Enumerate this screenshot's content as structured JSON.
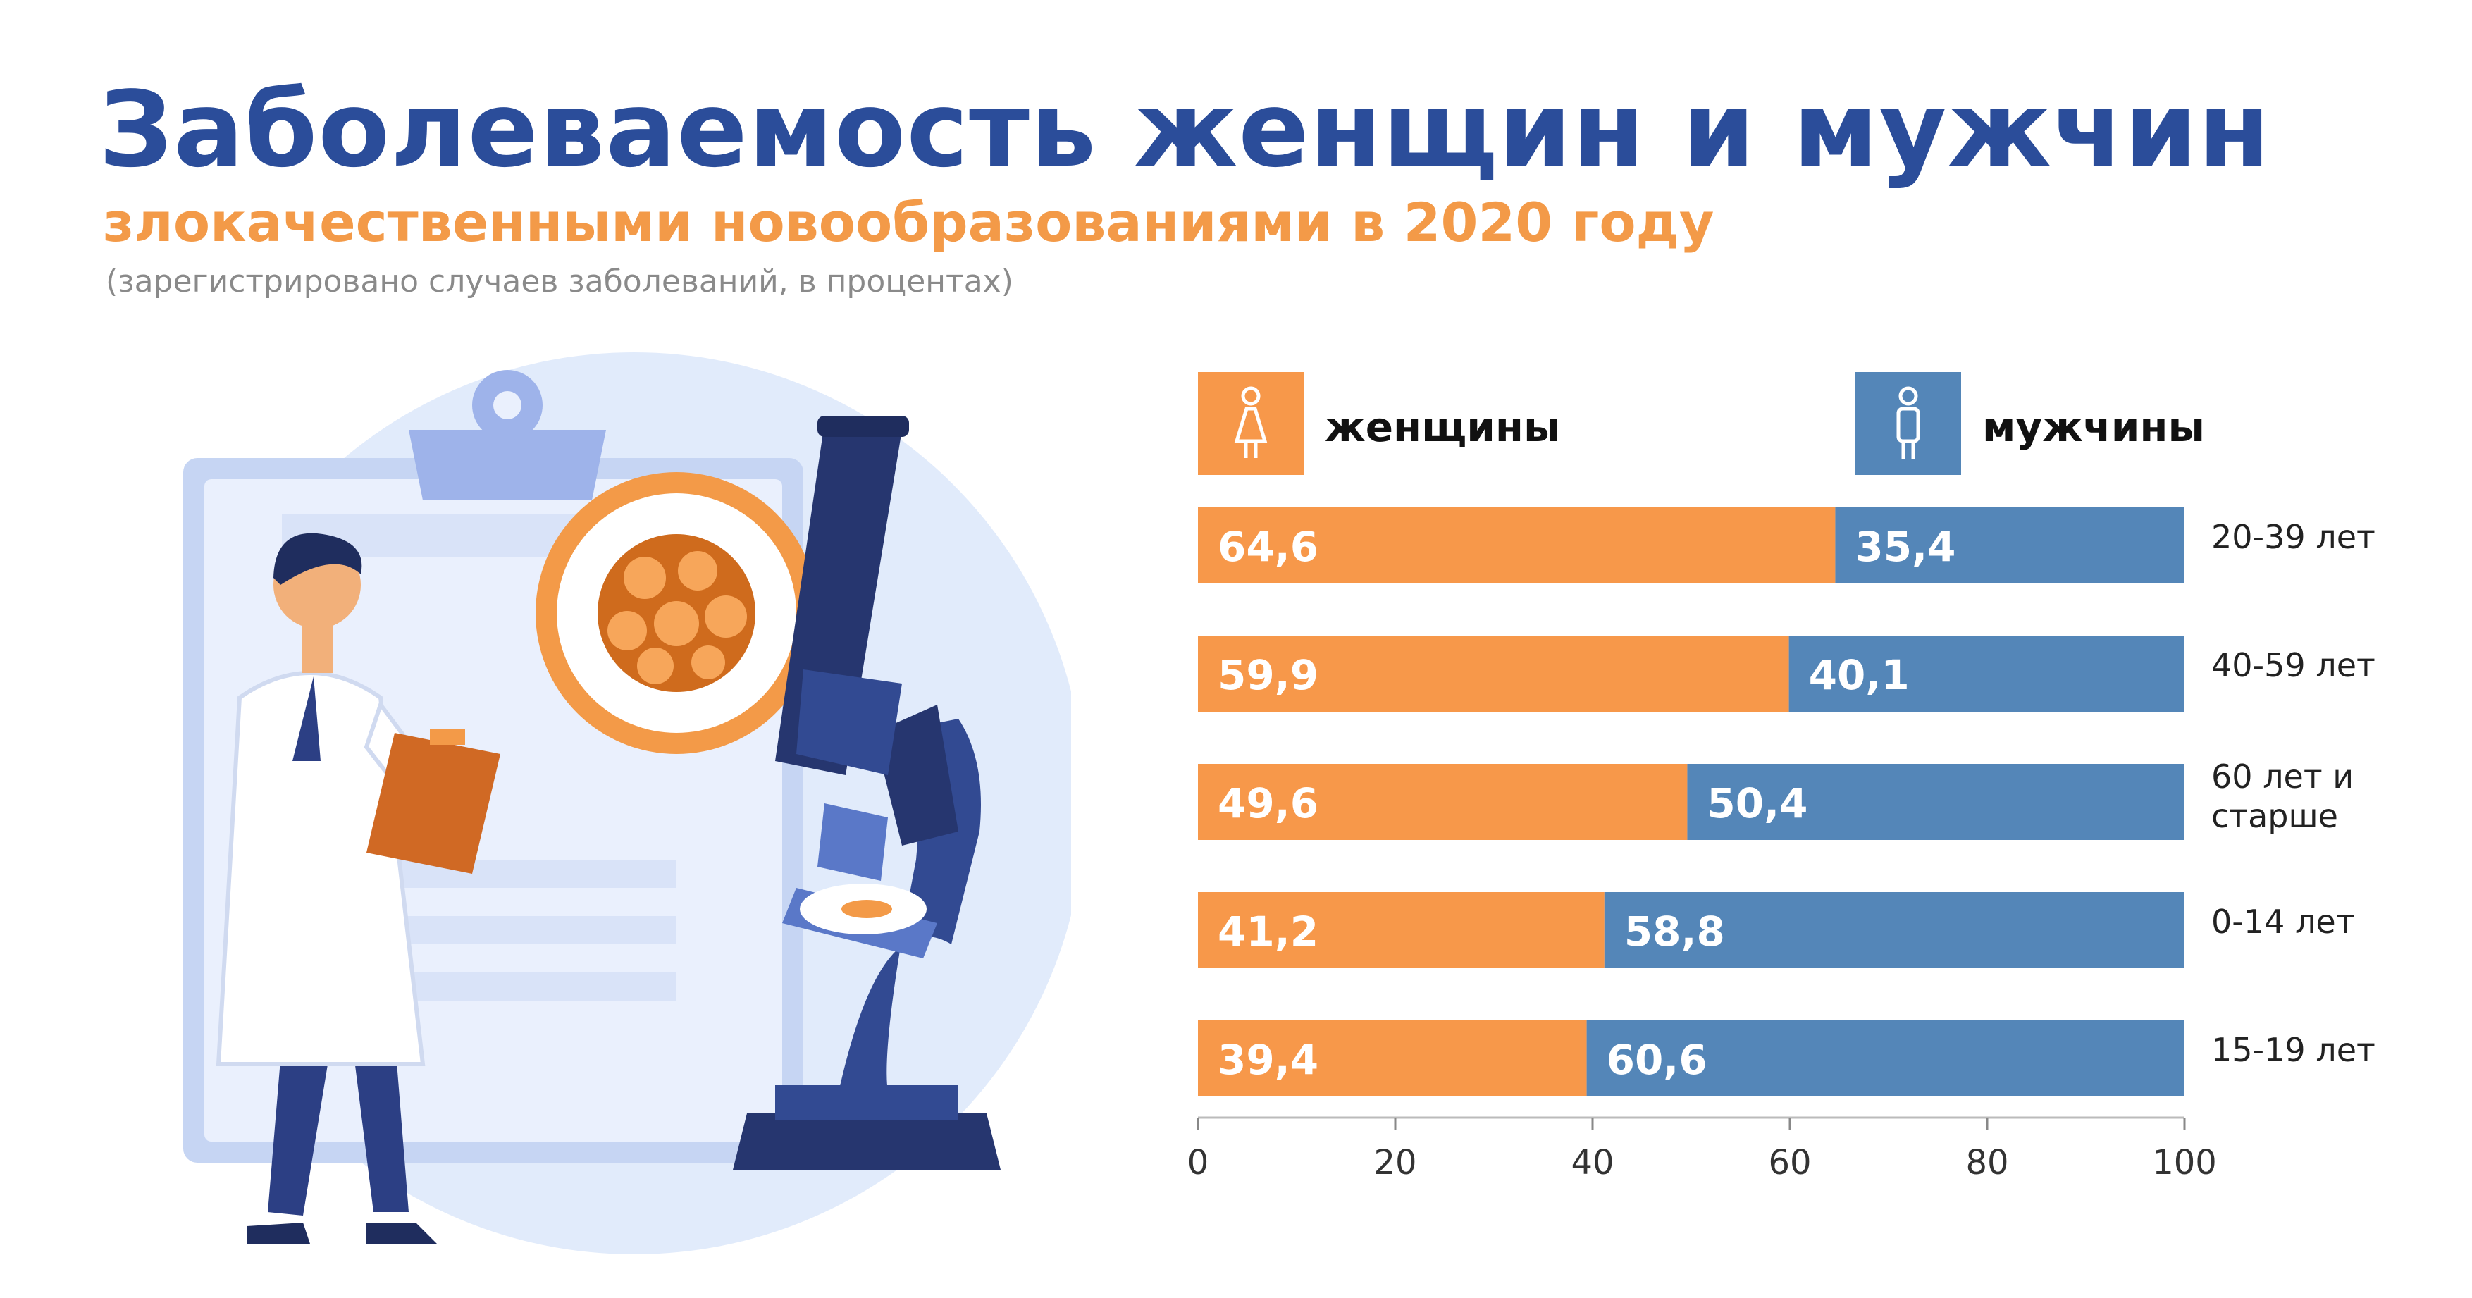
{
  "title": "Заболеваемость женщин и мужчин",
  "subtitle": "злокачественными новообразованиями в 2020 году",
  "note": "(зарегистрировано случаев заболеваний, в процентах)",
  "colors": {
    "title": "#2b4d9a",
    "subtitle": "#f39a48",
    "women": "#f7984a",
    "men": "#5486b8",
    "note": "#8a8a8a"
  },
  "chart_data": {
    "type": "bar",
    "orientation": "horizontal",
    "stacked": true,
    "categories": [
      "20-39 лет",
      "40-59 лет",
      "60 лет и старше",
      "0-14 лет",
      "15-19 лет"
    ],
    "category_lines": [
      [
        "20-39 лет"
      ],
      [
        "40-59 лет"
      ],
      [
        "60 лет и",
        "старше"
      ],
      [
        "0-14 лет"
      ],
      [
        "15-19 лет"
      ]
    ],
    "series": [
      {
        "name": "женщины",
        "values": [
          64.6,
          59.9,
          49.6,
          41.2,
          39.4
        ],
        "labels": [
          "64,6",
          "59,9",
          "49,6",
          "41,2",
          "39,4"
        ],
        "color": "#f7984a",
        "icon": "female-icon"
      },
      {
        "name": "мужчины",
        "values": [
          35.4,
          40.1,
          50.4,
          58.8,
          60.6
        ],
        "labels": [
          "35,4",
          "40,1",
          "50,4",
          "58,8",
          "60,6"
        ],
        "color": "#5486b8",
        "icon": "male-icon"
      }
    ],
    "xlim": [
      0,
      100
    ],
    "xticks": [
      0,
      20,
      40,
      60,
      80,
      100
    ],
    "xlabel": "",
    "ylabel": "",
    "legend": "top",
    "grid": false
  }
}
